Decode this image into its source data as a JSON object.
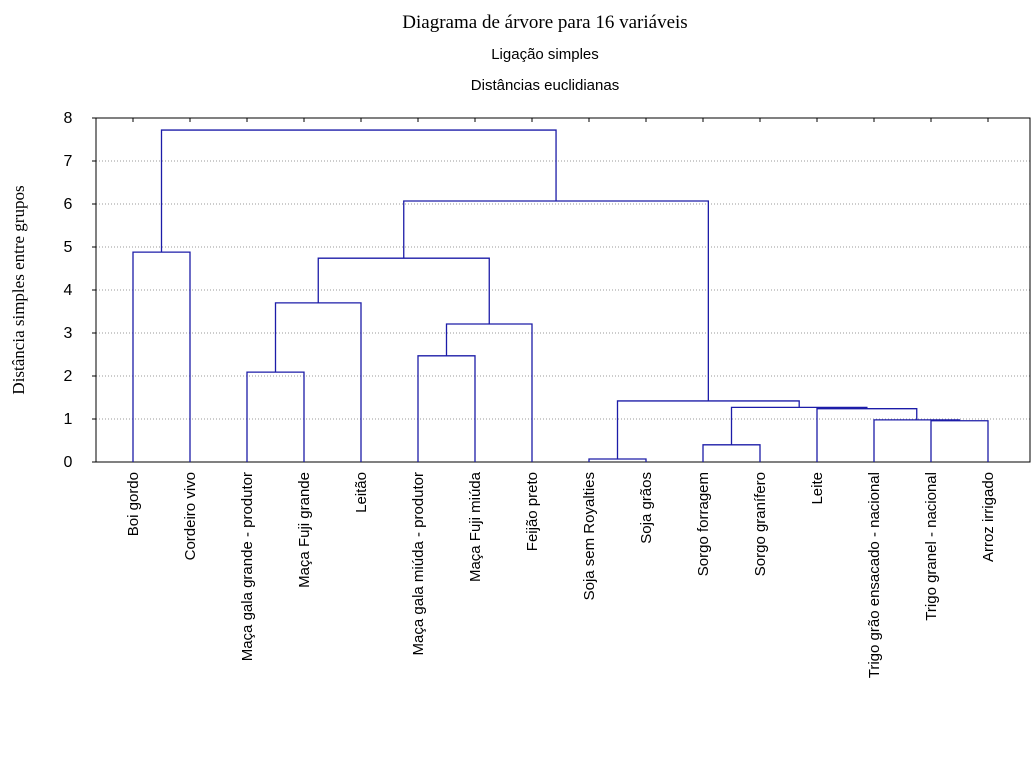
{
  "chart_data": {
    "type": "dendrogram",
    "title": "Diagrama de árvore para 16 variáveis",
    "subtitles": [
      "Ligação simples",
      "Distâncias euclidianas"
    ],
    "y_label": "Distância simples entre grupos",
    "color": "#1c1ca8",
    "grid": true,
    "ylim": [
      0,
      8
    ],
    "yticks": [
      0,
      1,
      2,
      3,
      4,
      5,
      6,
      7,
      8
    ],
    "tree": {
      "height": 7.72,
      "children": [
        {
          "height": 4.88,
          "children": [
            "Boi gordo",
            "Cordeiro vivo"
          ]
        },
        {
          "height": 6.07,
          "children": [
            {
              "height": 4.74,
              "children": [
                {
                  "height": 3.7,
                  "children": [
                    {
                      "height": 2.09,
                      "children": [
                        "Maça gala grande - produtor",
                        "Maça Fuji grande"
                      ]
                    },
                    "Leitão"
                  ]
                },
                {
                  "height": 3.21,
                  "children": [
                    {
                      "height": 2.47,
                      "children": [
                        "Maça gala miúda - produtor",
                        "Maça Fuji miúda"
                      ]
                    },
                    "Feijão preto"
                  ]
                }
              ]
            },
            {
              "height": 1.42,
              "children": [
                {
                  "height": 0.07,
                  "children": [
                    "Soja sem Royalties",
                    "Soja grãos"
                  ]
                },
                {
                  "height": 1.27,
                  "children": [
                    {
                      "height": 0.4,
                      "children": [
                        "Sorgo forragem",
                        "Sorgo granífero"
                      ]
                    },
                    {
                      "height": 1.24,
                      "children": [
                        "Leite",
                        {
                          "height": 0.98,
                          "children": [
                            "Trigo grão ensacado - nacional",
                            {
                              "height": 0.96,
                              "children": [
                                "Trigo granel - nacional",
                                "Arroz irrigado"
                              ]
                            }
                          ]
                        }
                      ]
                    }
                  ]
                }
              ]
            }
          ]
        }
      ]
    }
  }
}
